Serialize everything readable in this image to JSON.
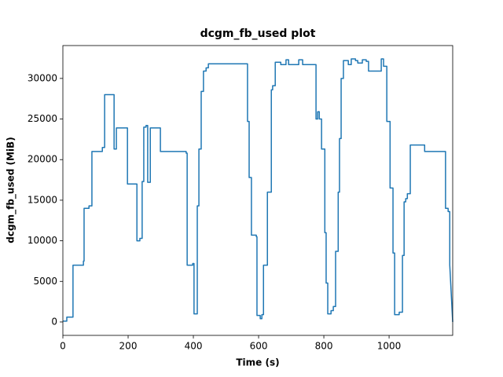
{
  "chart_data": {
    "type": "line",
    "title": "dcgm_fb_used plot",
    "x_label": "Time (s)",
    "y_label": "dcgm_fb_used (MiB)",
    "color": "#1f77b4",
    "x": [
      0,
      12,
      12,
      31,
      31,
      63,
      63,
      65,
      65,
      80,
      80,
      89,
      89,
      121,
      121,
      128,
      128,
      157,
      157,
      164,
      164,
      198,
      198,
      227,
      227,
      236,
      236,
      243,
      243,
      248,
      248,
      255,
      255,
      260,
      260,
      268,
      268,
      299,
      299,
      378,
      378,
      381,
      381,
      398,
      398,
      402,
      402,
      412,
      412,
      417,
      417,
      424,
      424,
      431,
      431,
      439,
      439,
      446,
      446,
      566,
      566,
      571,
      571,
      578,
      578,
      593,
      593,
      595,
      595,
      605,
      605,
      610,
      610,
      615,
      615,
      627,
      627,
      639,
      639,
      643,
      643,
      651,
      651,
      668,
      668,
      684,
      684,
      692,
      692,
      723,
      723,
      735,
      735,
      776,
      776,
      781,
      781,
      786,
      786,
      793,
      793,
      803,
      803,
      807,
      807,
      812,
      812,
      822,
      822,
      829,
      829,
      836,
      836,
      844,
      844,
      848,
      848,
      853,
      853,
      860,
      860,
      875,
      875,
      884,
      884,
      897,
      897,
      904,
      904,
      918,
      918,
      930,
      930,
      937,
      937,
      976,
      976,
      983,
      983,
      993,
      993,
      1003,
      1003,
      1012,
      1012,
      1017,
      1017,
      1031,
      1031,
      1041,
      1041,
      1046,
      1046,
      1051,
      1051,
      1056,
      1056,
      1065,
      1065,
      1109,
      1109,
      1173,
      1173,
      1181,
      1181,
      1186,
      1186,
      1195
    ],
    "values": [
      100,
      100,
      600,
      600,
      7000,
      7000,
      7500,
      7500,
      14000,
      14000,
      14300,
      14300,
      21000,
      21000,
      21500,
      21500,
      28000,
      28000,
      21300,
      21300,
      23900,
      23900,
      17000,
      17000,
      10000,
      10000,
      10300,
      10300,
      17300,
      17300,
      24000,
      24000,
      24200,
      24200,
      17200,
      17200,
      23900,
      23900,
      21000,
      21000,
      20800,
      20800,
      7000,
      7000,
      7200,
      7200,
      1000,
      1000,
      14300,
      14300,
      21300,
      21300,
      28400,
      28400,
      30900,
      30900,
      31300,
      31300,
      31800,
      31800,
      24700,
      24700,
      17800,
      17800,
      10700,
      10700,
      10500,
      10500,
      800,
      800,
      400,
      400,
      900,
      900,
      7000,
      7000,
      16000,
      16000,
      28600,
      28600,
      29100,
      29100,
      32000,
      32000,
      31700,
      31700,
      32300,
      32300,
      31700,
      31700,
      32300,
      32300,
      31700,
      31700,
      25000,
      25000,
      25900,
      25900,
      25000,
      25000,
      21300,
      21300,
      11000,
      11000,
      4800,
      4800,
      1000,
      1000,
      1400,
      1400,
      1900,
      1900,
      8700,
      8700,
      16000,
      16000,
      22600,
      22600,
      30000,
      30000,
      32200,
      32200,
      31700,
      31700,
      32400,
      32400,
      32200,
      32200,
      31900,
      31900,
      32300,
      32300,
      32100,
      32100,
      30900,
      30900,
      32400,
      32400,
      31500,
      31500,
      24700,
      24700,
      16500,
      16500,
      8500,
      8500,
      900,
      900,
      1200,
      1200,
      8200,
      8200,
      14800,
      14800,
      15200,
      15200,
      15800,
      15800,
      21800,
      21800,
      21000,
      21000,
      14000,
      14000,
      13600,
      13600,
      7000,
      0
    ],
    "xlim": [
      0,
      1195
    ],
    "ylim": [
      -1650,
      34050
    ],
    "xticks": [
      0,
      200,
      400,
      600,
      800,
      1000
    ],
    "yticks": [
      0,
      5000,
      10000,
      15000,
      20000,
      25000,
      30000
    ]
  }
}
